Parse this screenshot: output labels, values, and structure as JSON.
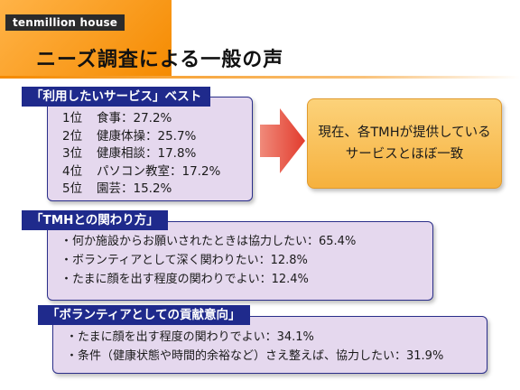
{
  "brand": "tenmillion house",
  "page_title": "ニーズ調査による一般の声",
  "sections": {
    "services": {
      "title": "「利用したいサービス」ベスト",
      "items": [
        {
          "rank": "1位",
          "label": "食事：27.2%"
        },
        {
          "rank": "2位",
          "label": "健康体操：25.7%"
        },
        {
          "rank": "3位",
          "label": "健康相談：17.8%"
        },
        {
          "rank": "4位",
          "label": "パソコン教室：17.2%"
        },
        {
          "rank": "5位",
          "label": "園芸：15.2%"
        }
      ]
    },
    "relation": {
      "title": "「TMHとの関わり方」",
      "items": [
        "・何か施設からお願いされたときは協力したい：65.4%",
        "・ボランティアとして深く関わりたい：12.8%",
        "・たまに顔を出す程度の関わりでよい：12.4%"
      ]
    },
    "volunteer": {
      "title": "「ボランティアとしての貢献意向」",
      "items": [
        "・たまに顔を出す程度の関わりでよい：34.1%",
        "・条件（健康状態や時間的余裕など）さえ整えば、協力したい：31.9%"
      ]
    }
  },
  "result": {
    "lines": [
      "現在、各TMHが提供している",
      "サービスとほぼ一致"
    ]
  },
  "colors": {
    "accent_orange": "#f58a00",
    "header_navy": "#1f2a8c",
    "panel_lavender": "#e5d8ee",
    "arrow_red": "#e8473a"
  }
}
